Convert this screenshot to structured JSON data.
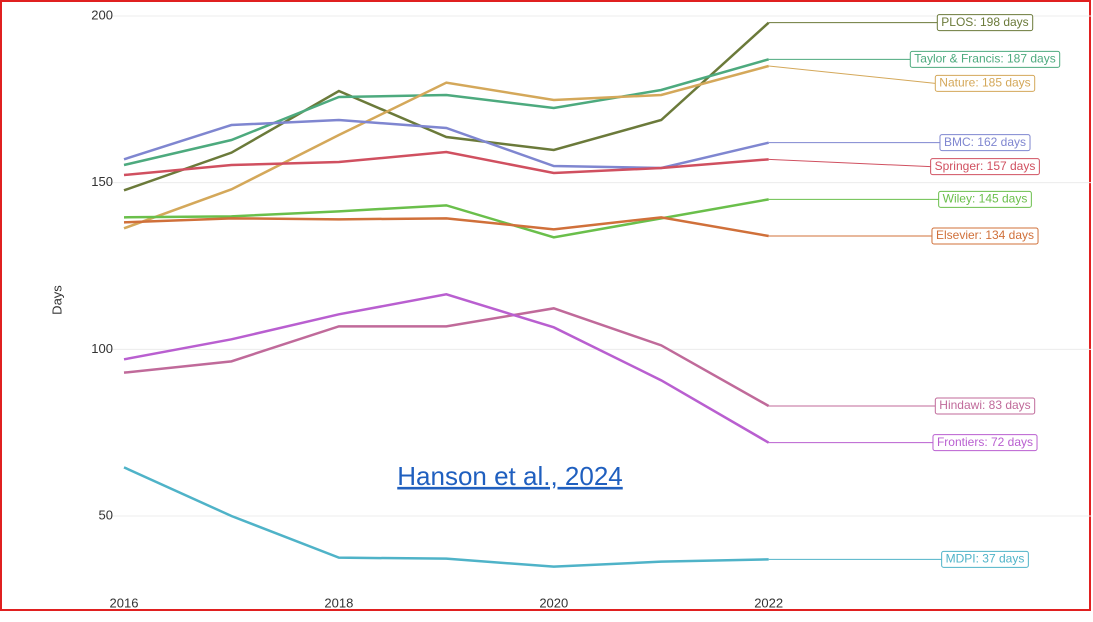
{
  "chart_data": {
    "type": "line",
    "annotation": "Hanson et al., 2024",
    "y_label": "Days",
    "x": [
      2016,
      2017,
      2018,
      2019,
      2020,
      2021,
      2022
    ],
    "xlim": [
      2016,
      2025
    ],
    "xticks": [
      2016,
      2018,
      2020,
      2022
    ],
    "ylim": [
      26,
      200
    ],
    "yticks": [
      50,
      100,
      150,
      200
    ],
    "grid": true,
    "series": [
      {
        "name": "PLOS",
        "label": "PLOS: 198 days",
        "color": "#6b7a3a",
        "values": [
          147.7,
          159,
          177.5,
          163.7,
          159.8,
          168.8,
          198
        ]
      },
      {
        "name": "Taylor & Francis",
        "label": "Taylor & Francis: 187 days",
        "color": "#4daa7e",
        "values": [
          155.3,
          162.8,
          175.7,
          176.3,
          172.4,
          177.8,
          187
        ]
      },
      {
        "name": "Nature",
        "label": "Nature: 185 days",
        "color": "#d4a85a",
        "values": [
          136.3,
          148,
          164.3,
          180,
          174.8,
          176.3,
          185
        ]
      },
      {
        "name": "BMC",
        "label": "BMC: 162 days",
        "color": "#7f86d0",
        "values": [
          157,
          167.3,
          168.8,
          166.4,
          155,
          154.4,
          162
        ]
      },
      {
        "name": "Springer",
        "label": "Springer: 157 days",
        "color": "#d05060",
        "values": [
          152.3,
          155.3,
          156.2,
          159.2,
          152.9,
          154.4,
          157
        ]
      },
      {
        "name": "Wiley",
        "label": "Wiley: 145 days",
        "color": "#6abf4b",
        "values": [
          139.6,
          139.9,
          141.4,
          143.2,
          133.6,
          139.3,
          145
        ]
      },
      {
        "name": "Elsevier",
        "label": "Elsevier: 134 days",
        "color": "#d0703a",
        "values": [
          138.1,
          139.3,
          139,
          139.3,
          136,
          139.6,
          134
        ]
      },
      {
        "name": "Hindawi",
        "label": "Hindawi: 83 days",
        "color": "#c06a9a",
        "values": [
          93,
          96.4,
          106.9,
          106.9,
          112.3,
          101.2,
          83
        ]
      },
      {
        "name": "Frontiers",
        "label": "Frontiers: 72 days",
        "color": "#b95fd0",
        "values": [
          97,
          103,
          110.5,
          116.5,
          106.6,
          90.7,
          72
        ]
      },
      {
        "name": "MDPI",
        "label": "MDPI: 37 days",
        "color": "#4fb3c8",
        "values": [
          64.6,
          50,
          37.5,
          37.2,
          34.8,
          36.3,
          37
        ]
      }
    ]
  }
}
